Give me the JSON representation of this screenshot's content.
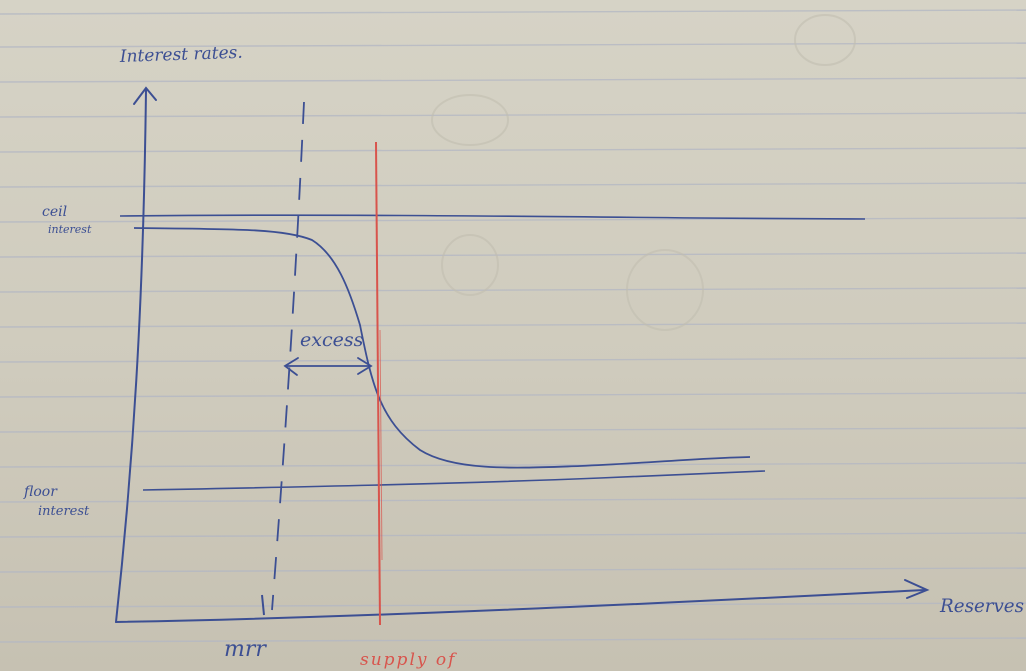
{
  "diagram": {
    "y_axis_label": "Interest rates.",
    "x_axis_label": "Reserves",
    "ceiling_label_line1": "ceil",
    "ceiling_label_line2": "interest",
    "floor_label_line1": "floor",
    "floor_label_line2": "interest",
    "excess_label": "excess",
    "mrr_label": "mrr",
    "supply_label": "supply of"
  },
  "colors": {
    "ink": "#3c4f93",
    "red_ink": "#d8544c",
    "rule_line": "#b3b7c4",
    "paper": "#d3cfc2"
  }
}
